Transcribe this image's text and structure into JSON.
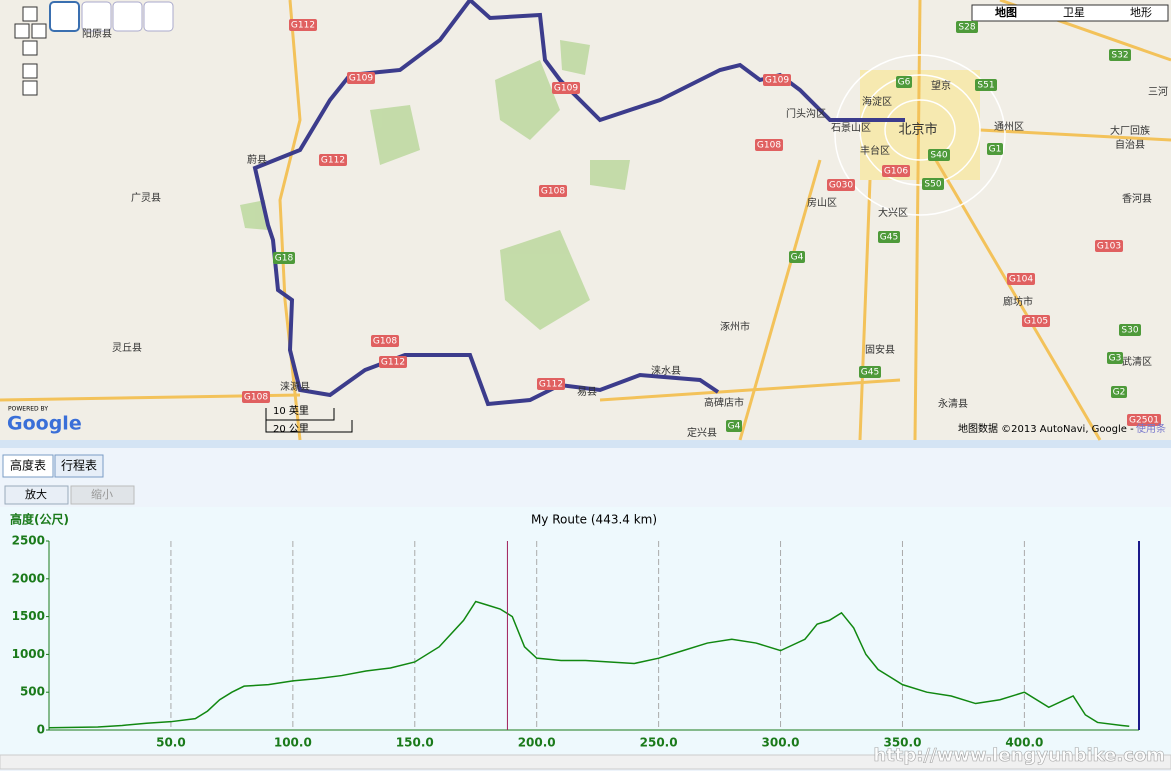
{
  "map": {
    "labels": [
      "阳原县",
      "蔚县",
      "广灵县",
      "灵丘县",
      "涞源县",
      "易县",
      "涞水县",
      "高碑店市",
      "定兴县",
      "涿州市",
      "房山区",
      "丰台区",
      "大兴区",
      "固安县",
      "永清县",
      "廊坊市",
      "香河县",
      "武清区",
      "北京市",
      "海淀区",
      "石景山区",
      "门头沟区",
      "通州区",
      "望京",
      "大厂回族",
      "自治县",
      "三河"
    ],
    "roads": [
      "G112",
      "G109",
      "G112",
      "G109",
      "G108",
      "G108",
      "G108",
      "G112",
      "G112",
      "G108",
      "G18",
      "G4",
      "G45",
      "G4",
      "G030",
      "G106",
      "G6",
      "S28",
      "S32",
      "S51",
      "G1",
      "S40",
      "S50",
      "G104",
      "G105",
      "G103",
      "S30",
      "G3",
      "G2",
      "G2501",
      "G45",
      "G109"
    ],
    "map_types": [
      "地图",
      "卫星",
      "地形"
    ],
    "scale": [
      "10 英里",
      "20 公里"
    ],
    "attribution": "地图数据 ©2013 AutoNavi, Google -",
    "terms": "使用条",
    "powered": "POWERED BY",
    "brand": "Google"
  },
  "tabs": [
    "高度表",
    "行程表"
  ],
  "buttons": [
    "放大",
    "缩小"
  ],
  "watermark": "http://www.lengyunbike.com",
  "chart_data": {
    "type": "line",
    "title": "My Route (443.4 km)",
    "y_label": "高度(公尺)",
    "color": "#118811",
    "x": [
      0,
      20,
      30,
      40,
      50,
      60,
      65,
      70,
      75,
      80,
      90,
      100,
      110,
      120,
      130,
      140,
      150,
      160,
      170,
      175,
      180,
      185,
      190,
      195,
      200,
      210,
      220,
      230,
      240,
      250,
      260,
      270,
      280,
      290,
      300,
      310,
      315,
      320,
      325,
      330,
      335,
      340,
      350,
      360,
      370,
      380,
      390,
      400,
      410,
      420,
      425,
      430,
      440,
      443
    ],
    "values": [
      30,
      40,
      60,
      90,
      110,
      150,
      250,
      400,
      500,
      580,
      600,
      650,
      680,
      720,
      780,
      820,
      900,
      1100,
      1450,
      1700,
      1650,
      1600,
      1500,
      1100,
      950,
      920,
      920,
      900,
      880,
      950,
      1050,
      1150,
      1200,
      1150,
      1050,
      1200,
      1400,
      1450,
      1550,
      1350,
      1000,
      800,
      600,
      500,
      450,
      350,
      400,
      500,
      300,
      450,
      200,
      100,
      60,
      50
    ],
    "marker_x": 188,
    "xlim": [
      0,
      447
    ],
    "ylim": [
      0,
      2500
    ],
    "xticks": [
      {
        "value": 50,
        "label": "50.0"
      },
      {
        "value": 100,
        "label": "100.0"
      },
      {
        "value": 150,
        "label": "150.0"
      },
      {
        "value": 200,
        "label": "200.0"
      },
      {
        "value": 250,
        "label": "250.0"
      },
      {
        "value": 300,
        "label": "300.0"
      },
      {
        "value": 350,
        "label": "350.0"
      },
      {
        "value": 400,
        "label": "400.0"
      }
    ],
    "yticks": [
      0,
      500,
      1000,
      1500,
      2000,
      2500
    ],
    "grid": true
  }
}
